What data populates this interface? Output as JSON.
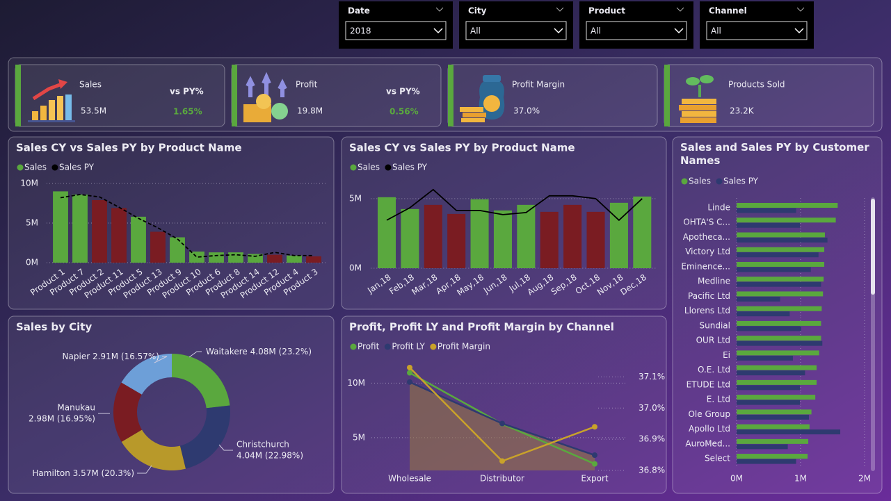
{
  "slicers": [
    {
      "label": "Date",
      "value": "2018"
    },
    {
      "label": "City",
      "value": "All"
    },
    {
      "label": "Product",
      "value": "All"
    },
    {
      "label": "Channel",
      "value": "All"
    }
  ],
  "kpis": [
    {
      "title": "Sales",
      "value": "53.5M",
      "compare_label": "vs PY%",
      "compare": "1.65%"
    },
    {
      "title": "Profit",
      "value": "19.8M",
      "compare_label": "vs PY%",
      "compare": "0.56%"
    },
    {
      "title": "Profit Margin",
      "value": "37.0%"
    },
    {
      "title": "Products Sold",
      "value": "23.2K"
    }
  ],
  "chart_data": [
    {
      "type": "bar",
      "title": "Sales CY vs Sales PY by Product Name",
      "categories": [
        "Product 1",
        "Product 7",
        "Product 2",
        "Product 11",
        "Product 5",
        "Product 13",
        "Product 9",
        "Product 10",
        "Product 6",
        "Product 8",
        "Product 14",
        "Product 12",
        "Product 4",
        "Product 3"
      ],
      "series": [
        {
          "name": "Sales",
          "color": "#5aa83e",
          "kind": "bar",
          "colors": [
            "#5aa83e",
            "#5aa83e",
            "#7a1c22",
            "#7a1c22",
            "#5aa83e",
            "#7a1c22",
            "#5aa83e",
            "#5aa83e",
            "#5aa83e",
            "#5aa83e",
            "#5aa83e",
            "#7a1c22",
            "#5aa83e",
            "#7a1c22"
          ],
          "values": [
            9.0,
            8.6,
            7.9,
            6.9,
            5.8,
            3.9,
            3.2,
            1.4,
            1.3,
            1.3,
            1.1,
            1.0,
            0.9,
            0.8
          ]
        },
        {
          "name": "Sales PY",
          "color": "#000000",
          "kind": "line",
          "dashed": true,
          "values": [
            8.2,
            8.6,
            8.3,
            7.0,
            5.6,
            4.4,
            3.0,
            0.7,
            0.9,
            1.0,
            0.8,
            1.3,
            0.9,
            0.9
          ]
        }
      ],
      "ylim": [
        0,
        10
      ],
      "yticks": [
        {
          "value": 0,
          "label": "0M"
        },
        {
          "value": 5,
          "label": "5M"
        },
        {
          "value": 10,
          "label": "10M"
        }
      ],
      "grid": true
    },
    {
      "type": "bar",
      "title": "Sales CY vs Sales PY by Product Name",
      "categories": [
        "Jan,18",
        "Feb,18",
        "Mar,18",
        "Apr,18",
        "May,18",
        "Jun,18",
        "Jul,18",
        "Aug,18",
        "Sep,18",
        "Oct,18",
        "Nov,18",
        "Dec,18"
      ],
      "series": [
        {
          "name": "Sales",
          "color": "#5aa83e",
          "kind": "bar",
          "colors": [
            "#5aa83e",
            "#5aa83e",
            "#7a1c22",
            "#7a1c22",
            "#5aa83e",
            "#5aa83e",
            "#5aa83e",
            "#7a1c22",
            "#7a1c22",
            "#7a1c22",
            "#5aa83e",
            "#5aa83e"
          ],
          "values": [
            5.1,
            4.25,
            4.55,
            3.9,
            4.95,
            4.15,
            4.55,
            4.05,
            4.55,
            4.05,
            4.7,
            5.15
          ]
        },
        {
          "name": "Sales PY",
          "color": "#000000",
          "kind": "line",
          "dashed": false,
          "values": [
            3.45,
            4.35,
            5.65,
            4.15,
            4.15,
            3.85,
            4.0,
            5.2,
            5.2,
            5.0,
            3.45,
            5.0
          ]
        }
      ],
      "ylim": [
        0,
        6
      ],
      "yticks": [
        {
          "value": 0,
          "label": "0M"
        },
        {
          "value": 5,
          "label": "5M"
        }
      ],
      "grid": true
    },
    {
      "type": "barh",
      "title": "Sales and Sales PY by Customer Names",
      "categories": [
        "Linde",
        "OHTA'S C...",
        "Apotheca...",
        "Victory Ltd",
        "Eminence...",
        "Medline",
        "Pacific Ltd",
        "Llorens Ltd",
        "Sundial",
        "OUR Ltd",
        "Ei",
        "O.E. Ltd",
        "ETUDE Ltd",
        "E. Ltd",
        "Ole Group",
        "Apollo Ltd",
        "AuroMed...",
        "Select"
      ],
      "series": [
        {
          "name": "Sales",
          "color": "#5aa83e",
          "values": [
            1.58,
            1.55,
            1.38,
            1.37,
            1.37,
            1.36,
            1.35,
            1.33,
            1.32,
            1.32,
            1.29,
            1.25,
            1.25,
            1.23,
            1.17,
            1.14,
            1.12,
            1.11
          ]
        },
        {
          "name": "Sales PY",
          "color": "#2e3a70",
          "values": [
            0.93,
            0.99,
            1.42,
            1.28,
            1.16,
            1.32,
            0.68,
            0.83,
            1.01,
            1.34,
            0.88,
            1.07,
            0.99,
            0.99,
            1.13,
            1.62,
            0.8,
            0.93
          ]
        }
      ],
      "xlim": [
        0,
        2
      ],
      "xticks": [
        {
          "value": 0,
          "label": "0M"
        },
        {
          "value": 1,
          "label": "1M"
        },
        {
          "value": 2,
          "label": "2M"
        }
      ],
      "grid": true
    },
    {
      "type": "donut",
      "title": "Sales by City",
      "categories": [
        "Waitakere",
        "Christchurch",
        "Hamilton",
        "Manukau",
        "Napier"
      ],
      "values": [
        23.2,
        22.98,
        20.3,
        16.95,
        16.57
      ],
      "value_labels": [
        "4.08M (23.2%)",
        "4.04M (22.98%)",
        "3.57M (20.3%)",
        "2.98M (16.95%)",
        "2.91M (16.57%)"
      ],
      "colors": [
        "#5aa83e",
        "#2e3a70",
        "#b8992a",
        "#7a1c22",
        "#6d9fd8"
      ]
    },
    {
      "type": "line",
      "title": "Profit, Profit LY and Profit Margin by Channel",
      "categories": [
        "Wholesale",
        "Distributor",
        "Export"
      ],
      "series": [
        {
          "name": "Profit",
          "color": "#5aa83e",
          "values": [
            10.95,
            6.27,
            2.6
          ]
        },
        {
          "name": "Profit LY",
          "color": "#2e3a70",
          "area": true,
          "area_color": "#9a7a3e",
          "values": [
            10.1,
            6.3,
            3.4
          ]
        },
        {
          "name": "Profit Margin",
          "color": "#c9a22a",
          "axis": "y2",
          "values": [
            37.13,
            36.83,
            36.94
          ]
        }
      ],
      "ylim": [
        2,
        12
      ],
      "yticks": [
        {
          "value": 5,
          "label": "5M"
        },
        {
          "value": 10,
          "label": "10M"
        }
      ],
      "y2lim": [
        36.8,
        37.15
      ],
      "y2ticks": [
        {
          "value": 36.8,
          "label": "36.8%"
        },
        {
          "value": 36.9,
          "label": "36.9%"
        },
        {
          "value": 37.0,
          "label": "37.0%"
        },
        {
          "value": 37.1,
          "label": "37.1%"
        }
      ],
      "grid": true
    }
  ]
}
